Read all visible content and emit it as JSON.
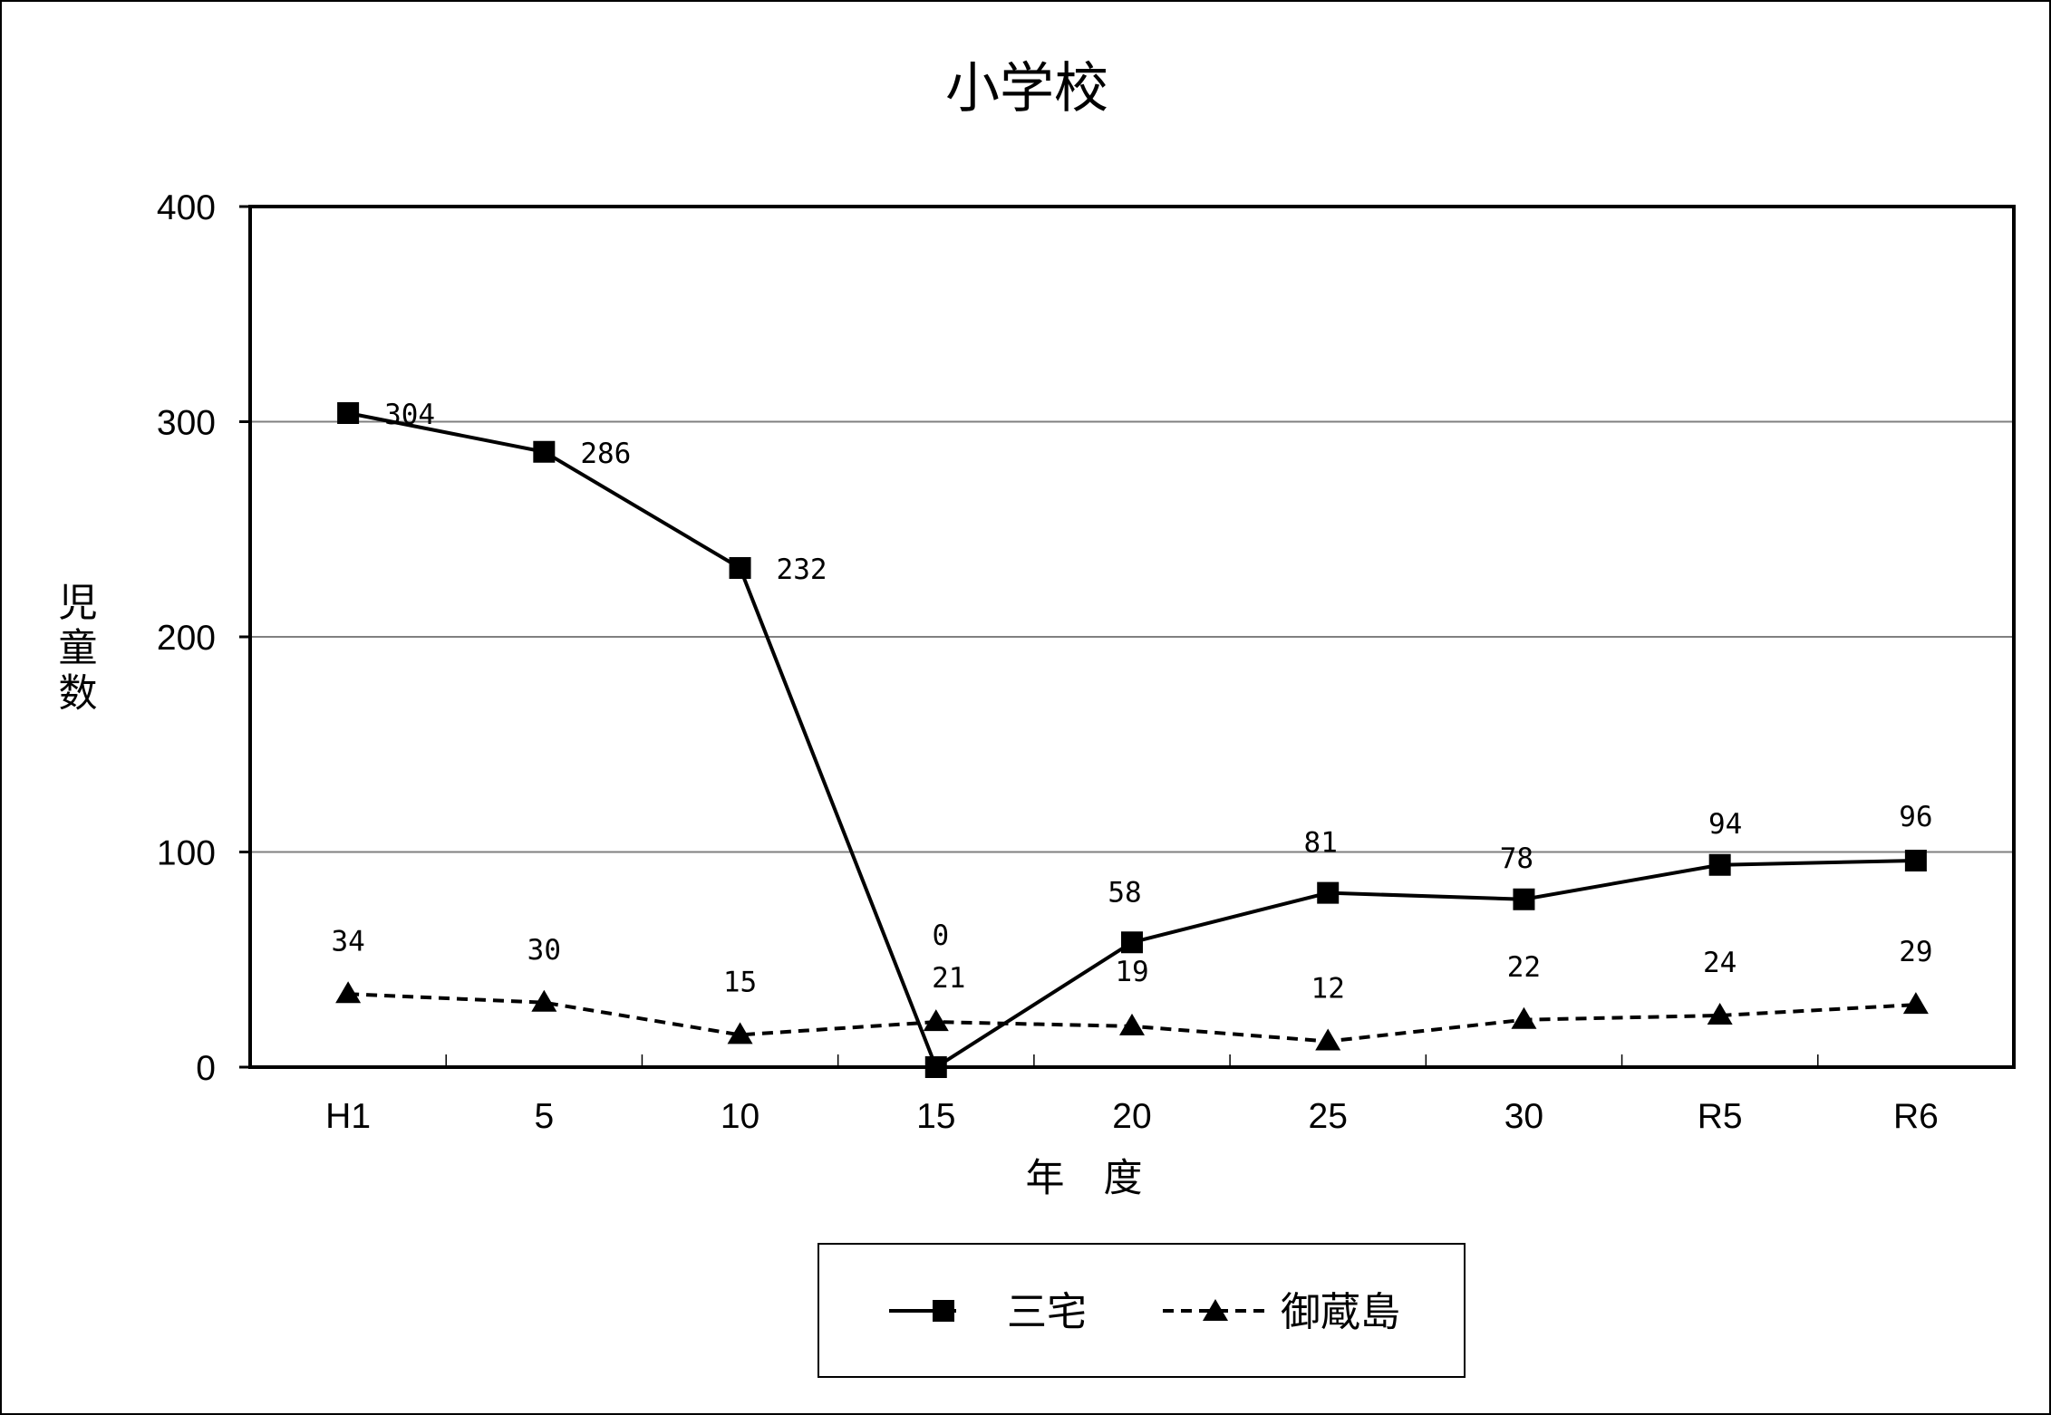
{
  "chart_data": {
    "type": "line",
    "title": "小学校",
    "xlabel": "年　度",
    "ylabel": "児童数",
    "categories": [
      "H1",
      "5",
      "10",
      "15",
      "20",
      "25",
      "30",
      "R5",
      "R6"
    ],
    "ylim": [
      0,
      400
    ],
    "yticks": [
      "0",
      "100",
      "200",
      "300",
      "400"
    ],
    "grid": true,
    "legend_position": "bottom",
    "series": [
      {
        "name": "三宅",
        "marker": "square",
        "line": "solid",
        "color": "#000000",
        "values": [
          304,
          286,
          232,
          0,
          58,
          81,
          78,
          94,
          96
        ],
        "labels": [
          "304",
          "286",
          "232",
          "0",
          "58",
          "81",
          "78",
          "94",
          "96"
        ]
      },
      {
        "name": "御蔵島",
        "marker": "triangle",
        "line": "dashed",
        "color": "#000000",
        "values": [
          34,
          30,
          15,
          21,
          19,
          12,
          22,
          24,
          29
        ],
        "labels": [
          "34",
          "30",
          "15",
          "21",
          "19",
          "12",
          "22",
          "24",
          "29"
        ]
      }
    ]
  }
}
